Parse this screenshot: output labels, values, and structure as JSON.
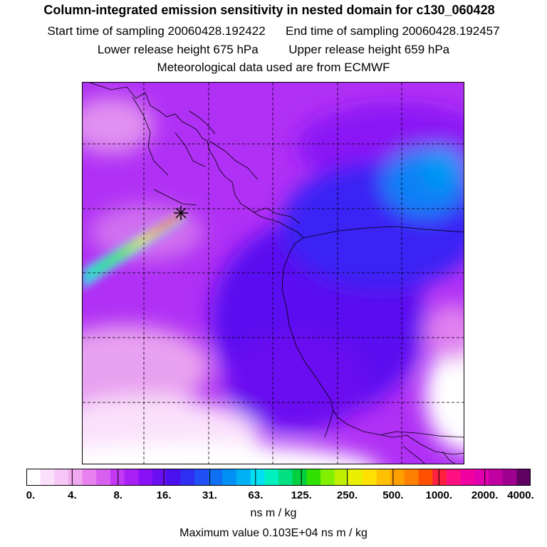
{
  "header": {
    "title": "Column-integrated emission sensitivity in nested domain for c130_060428",
    "start_time": "Start time of sampling 20060428.192422",
    "end_time": "End time of sampling 20060428.192457",
    "lower_height": "Lower release height  675 hPa",
    "upper_height": "Upper release height  659 hPa",
    "met_data": "Meteorological data used are from ECMWF"
  },
  "map": {
    "release_marker": "release-point-star",
    "grid": "dashed lat/lon lines",
    "field": "column-integrated emission sensitivity"
  },
  "legend": {
    "tick_labels": [
      "0.",
      "4.",
      "8.",
      "16.",
      "31.",
      "63.",
      "125.",
      "250.",
      "500.",
      "1000.",
      "2000.",
      "4000."
    ],
    "colors": [
      "#ffffff",
      "#fbe0fb",
      "#f6c6f6",
      "#f0a8f0",
      "#e880f0",
      "#d860f0",
      "#c238f5",
      "#a820f5",
      "#8a10f5",
      "#6a10f0",
      "#4a10f0",
      "#3030f5",
      "#2050f5",
      "#1070f5",
      "#0090f5",
      "#00b0f5",
      "#00e0f5",
      "#00f0c0",
      "#00e080",
      "#00d040",
      "#30e000",
      "#80f000",
      "#c0f000",
      "#e8f000",
      "#ffe000",
      "#ffc000",
      "#ffa000",
      "#ff8000",
      "#ff5000",
      "#ff2040",
      "#ff1080",
      "#f000a0",
      "#e000b0",
      "#c000a0",
      "#a00090",
      "#600060"
    ],
    "units": "ns m / kg",
    "max_value": "Maximum value  0.103E+04 ns m / kg"
  }
}
